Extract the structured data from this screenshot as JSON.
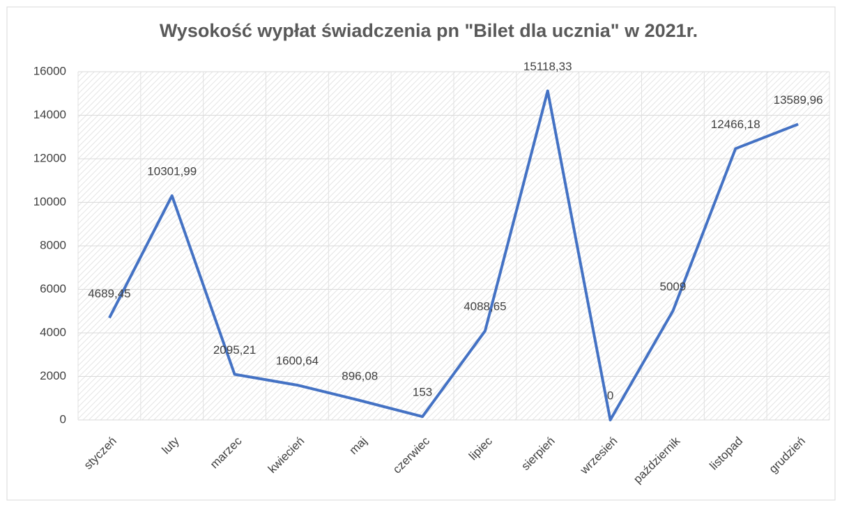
{
  "chart_data": {
    "type": "line",
    "title": "Wysokość wypłat świadczenia pn \"Bilet dla ucznia\" w 2021r.",
    "categories": [
      "styczeń",
      "luty",
      "marzec",
      "kwiecień",
      "maj",
      "czerwiec",
      "lipiec",
      "sierpień",
      "wrzesień",
      "październik",
      "listopad",
      "grudzień"
    ],
    "values": [
      4689.45,
      10301.99,
      2095.21,
      1600.64,
      896.08,
      153,
      4088.65,
      15118.33,
      0,
      5009,
      12466.18,
      13589.96
    ],
    "value_labels": [
      "4689,45",
      "10301,99",
      "2095,21",
      "1600,64",
      "896,08",
      "153",
      "4088,65",
      "15118,33",
      "0",
      "5009",
      "12466,18",
      "13589,96"
    ],
    "color": "#4472c4",
    "ylim": [
      0,
      16000
    ],
    "yticks": [
      0,
      2000,
      4000,
      6000,
      8000,
      10000,
      12000,
      14000,
      16000
    ],
    "grid": true
  }
}
